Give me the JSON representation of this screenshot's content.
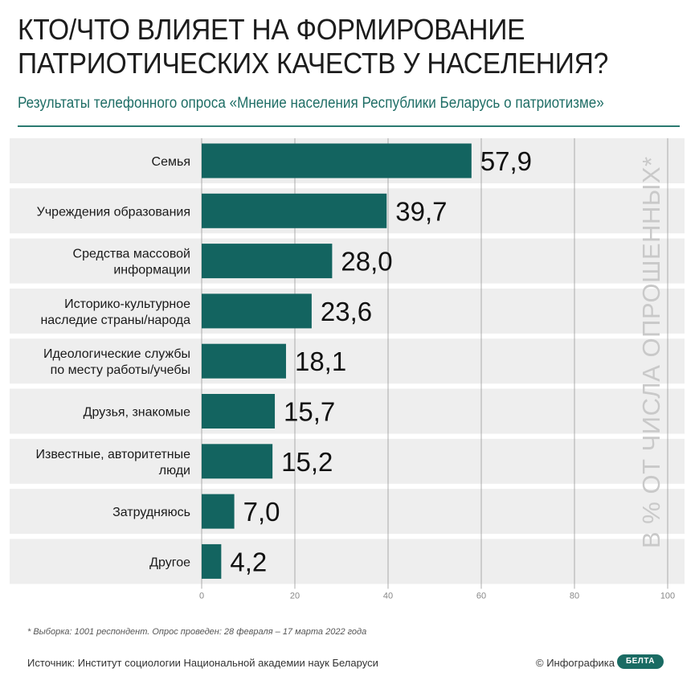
{
  "header": {
    "title_line1": "КТО/ЧТО ВЛИЯЕТ НА ФОРМИРОВАНИЕ",
    "title_line2": "ПАТРИОТИЧЕСКИХ КАЧЕСТВ У НАСЕЛЕНИЯ?",
    "subtitle": "Результаты телефонного опроса «Мнение населения Республики Беларусь о патриотизме»"
  },
  "chart_data": {
    "type": "bar",
    "orientation": "horizontal",
    "categories": [
      "Семья",
      "Учреждения образования",
      "Средства массовой\nинформации",
      "Историко-культурное\nнаследие страны/народа",
      "Идеологические службы\nпо месту работы/учебы",
      "Друзья, знакомые",
      "Известные, авторитетные\nлюди",
      "Затрудняюсь",
      "Другое"
    ],
    "values": [
      57.9,
      39.7,
      28.0,
      23.6,
      18.1,
      15.7,
      15.2,
      7.0,
      4.2
    ],
    "value_labels": [
      "57,9",
      "39,7",
      "28,0",
      "23,6",
      "18,1",
      "15,7",
      "15,2",
      "7,0",
      "4,2"
    ],
    "xlim": [
      0,
      100
    ],
    "xticks": [
      0,
      20,
      40,
      60,
      80,
      100
    ],
    "grid": true,
    "bar_color": "#136460",
    "row_band_color": "#eeeeee",
    "unit_label": "В % ОТ ЧИСЛА ОПРОШЕННЫХ*"
  },
  "footer": {
    "footnote": "* Выборка: 1001 респондент. Опрос проведен: 28 февраля – 17 марта 2022 года",
    "source": "Источник: Институт социологии Национальной академии наук Беларуси",
    "credit": "© Инфографика",
    "logo_text": "БЕЛТА"
  }
}
